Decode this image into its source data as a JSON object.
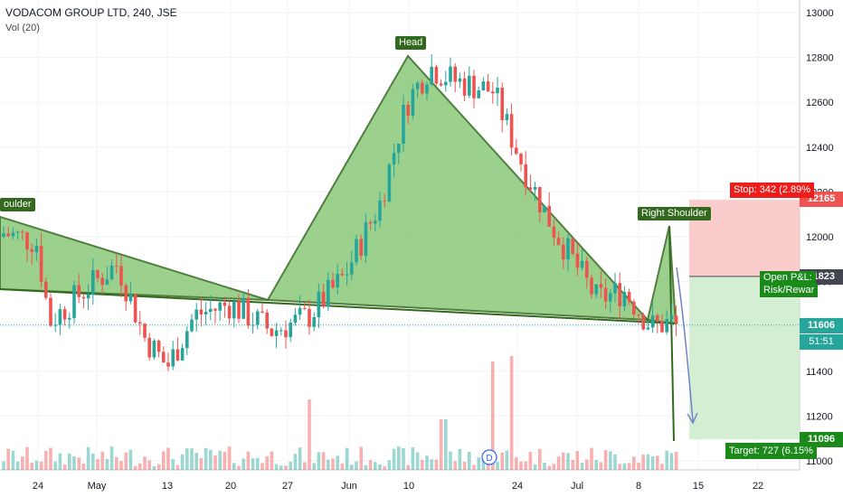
{
  "header": {
    "symbol_line": "VODACOM GROUP LTD, 240, JSE",
    "indicator_line": "Vol (20)"
  },
  "price_axis": {
    "ticks": [
      "13000",
      "12800",
      "12600",
      "12400",
      "12200",
      "12000",
      "11800",
      "11600",
      "11400",
      "11200",
      "11000"
    ]
  },
  "time_axis": {
    "ticks": [
      "24",
      "May",
      "13",
      "20",
      "27",
      "Jun",
      "10",
      "24",
      "Jul",
      "8",
      "15",
      "22"
    ]
  },
  "price_tags": {
    "stop": "12165",
    "entry": "11823",
    "last": "11606",
    "countdown": "51:51",
    "target": "11096"
  },
  "position_labels": {
    "stop": "Stop: 342 (2.89%",
    "open_pl": "Open P&L:",
    "risk_reward": "Risk/Rewar",
    "target": "Target: 727 (6.15%"
  },
  "pattern_labels": {
    "left_shoulder": "oulder",
    "head": "Head",
    "right_shoulder": "Right Shoulder"
  },
  "dividend_marker": "D",
  "colors": {
    "up": "#26a69a",
    "down": "#ef5350",
    "pattern_fill": "#8bc97a",
    "pattern_stroke": "#33691e",
    "stop_zone": "#f9c7c7",
    "target_zone": "#cfeccf",
    "label_bg": "#33691e"
  },
  "chart_data": {
    "type": "candlestick",
    "title": "VODACOM GROUP LTD, 240, JSE",
    "ylim": [
      11000,
      13050
    ],
    "pattern": "head-and-shoulders",
    "pattern_points": [
      {
        "label": "left-shoulder",
        "price": 12080
      },
      {
        "label": "head",
        "price": 12800
      },
      {
        "label": "right-shoulder",
        "price": 12040
      }
    ],
    "neckline": [
      11710,
      11590
    ],
    "position": {
      "side": "short",
      "entry": 11823,
      "stop": 12165,
      "target": 11096,
      "stop_text": "Stop: 342 (2.89%",
      "target_text": "Target: 727 (6.15%"
    },
    "last_price": 11606
  }
}
